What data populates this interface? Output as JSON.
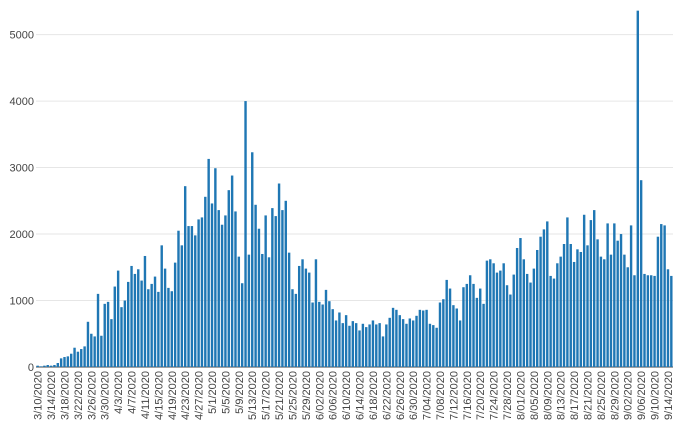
{
  "colors": {
    "bar": "#1f77b4",
    "grid": "#e6e6e6",
    "axis_text": "#444444"
  },
  "chart_data": {
    "type": "bar",
    "title": "",
    "xlabel": "",
    "ylabel": "",
    "ylim": [
      0,
      5400
    ],
    "grid": "horizontal",
    "start_date": "3/10/2020",
    "end_date": "9/14/2020",
    "x_tick_labels": [
      "3/10/2020",
      "3/14/2020",
      "3/18/2020",
      "3/22/2020",
      "3/26/2020",
      "3/30/2020",
      "4/3/2020",
      "4/7/2020",
      "4/11/2020",
      "4/15/2020",
      "4/19/2020",
      "4/23/2020",
      "4/27/2020",
      "5/1/2020",
      "5/5/2020",
      "5/9/2020",
      "5/13/2020",
      "5/17/2020",
      "5/21/2020",
      "5/25/2020",
      "5/29/2020",
      "6/02/2020",
      "6/06/2020",
      "6/10/2020",
      "6/14/2020",
      "6/18/2020",
      "6/22/2020",
      "6/26/2020",
      "6/30/2020",
      "7/04/2020",
      "7/08/2020",
      "7/12/2020",
      "7/16/2020",
      "7/20/2020",
      "7/24/2020",
      "7/28/2020",
      "8/01/2020",
      "8/05/2020",
      "8/09/2020",
      "8/13/2020",
      "8/17/2020",
      "8/21/2020",
      "8/25/2020",
      "8/29/2020",
      "9/02/2020",
      "9/06/2020",
      "9/10/2020",
      "9/14/2020"
    ],
    "y_ticks": [
      0,
      1000,
      2000,
      3000,
      4000,
      5000
    ],
    "y_tick_labels": [
      "0",
      "1000",
      "2000",
      "3000",
      "4000",
      "5000"
    ],
    "values": [
      20,
      10,
      20,
      30,
      20,
      30,
      60,
      130,
      150,
      160,
      200,
      290,
      230,
      270,
      310,
      680,
      500,
      460,
      1100,
      470,
      950,
      980,
      720,
      1210,
      1450,
      900,
      1000,
      1280,
      1520,
      1400,
      1470,
      1300,
      1670,
      1170,
      1250,
      1360,
      1130,
      1830,
      1480,
      1190,
      1140,
      1570,
      2050,
      1830,
      2720,
      2120,
      2120,
      1980,
      2220,
      2250,
      2560,
      3130,
      2460,
      2990,
      2360,
      2140,
      2280,
      2660,
      2880,
      2340,
      1660,
      1260,
      4000,
      1690,
      3230,
      2440,
      2080,
      1700,
      2280,
      1650,
      2390,
      2270,
      2760,
      2360,
      2500,
      1720,
      1170,
      1100,
      1520,
      1620,
      1480,
      1420,
      970,
      1620,
      980,
      940,
      1160,
      990,
      870,
      700,
      820,
      660,
      780,
      620,
      690,
      660,
      550,
      650,
      600,
      640,
      700,
      640,
      660,
      460,
      640,
      740,
      890,
      860,
      780,
      720,
      650,
      730,
      700,
      770,
      860,
      850,
      860,
      650,
      630,
      590,
      970,
      1020,
      1310,
      1180,
      930,
      880,
      700,
      1200,
      1250,
      1380,
      1250,
      1040,
      1180,
      950,
      1600,
      1620,
      1560,
      1420,
      1450,
      1560,
      1230,
      1090,
      1390,
      1790,
      1940,
      1620,
      1400,
      1270,
      1480,
      1760,
      1960,
      2070,
      2190,
      1370,
      1330,
      1560,
      1660,
      1850,
      2250,
      1850,
      1580,
      1770,
      1730,
      2290,
      1830,
      2210,
      2360,
      1920,
      1660,
      1620,
      2160,
      1690,
      2160,
      1900,
      2000,
      1690,
      1500,
      2130,
      1380,
      5360,
      2810,
      1400,
      1380,
      1380,
      1370,
      1960,
      2150,
      2130,
      1470,
      1370
    ]
  }
}
